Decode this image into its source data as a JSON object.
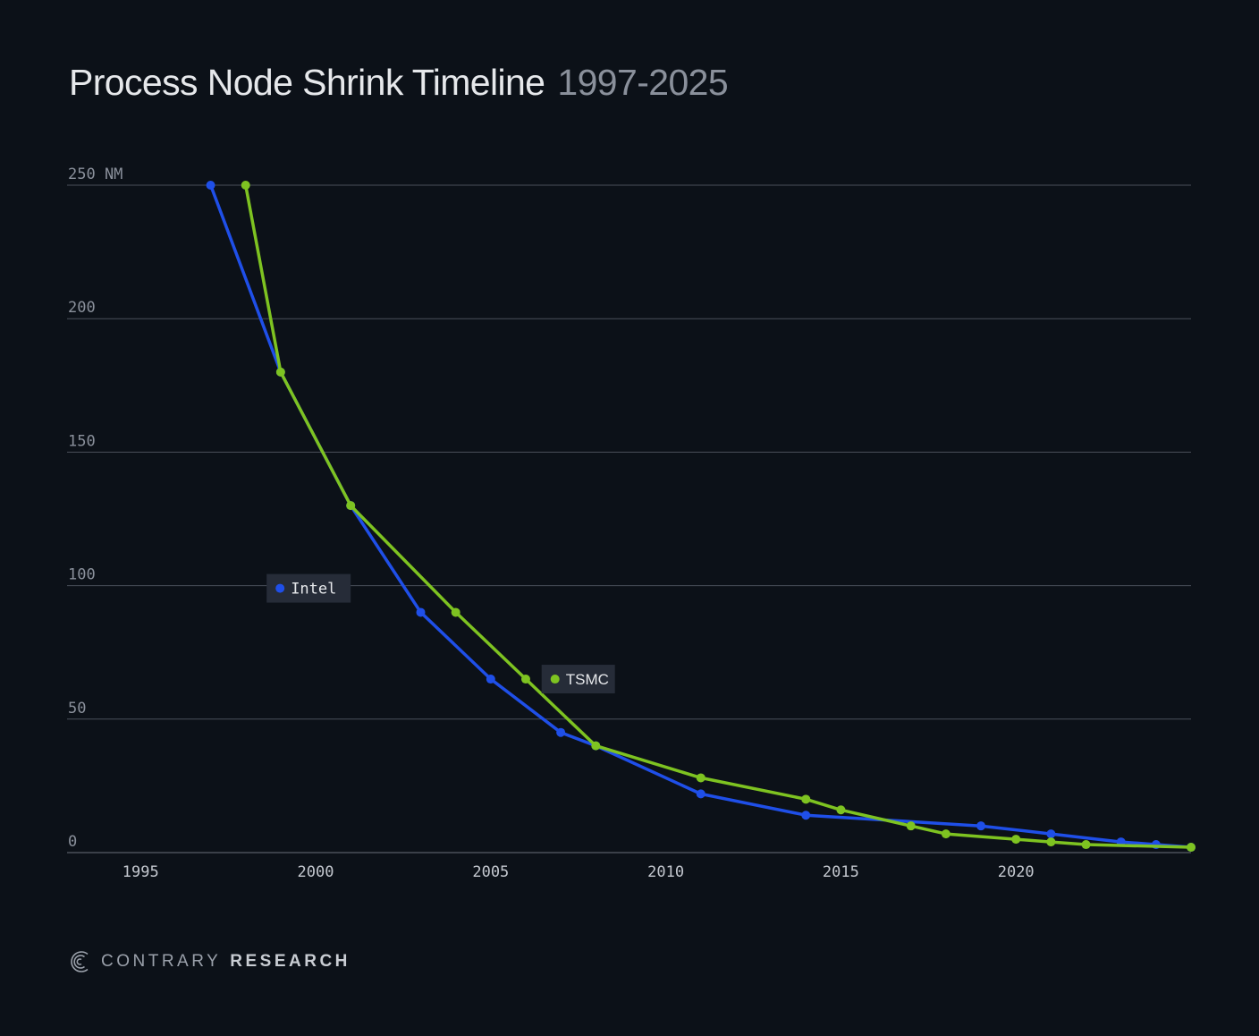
{
  "header": {
    "title": "Process Node Shrink Timeline",
    "subtitle": "1997-2025"
  },
  "footer": {
    "brand_light": "CONTRARY",
    "brand_bold": "RESEARCH",
    "logo_icon": "contrary-logo-icon"
  },
  "colors": {
    "background": "#0c1118",
    "intel": "#1f4fe8",
    "tsmc": "#7ec321",
    "grid": "#4a505a",
    "tick_text": "#8a909b",
    "legend_bg": "#262c38"
  },
  "chart_data": {
    "type": "line",
    "title": "Process Node Shrink Timeline",
    "subtitle": "1997-2025",
    "xlabel": "",
    "ylabel": "",
    "y_unit": "NM",
    "xlim": [
      1992.9,
      2025
    ],
    "ylim": [
      0,
      250
    ],
    "x_ticks": [
      1995,
      2000,
      2005,
      2010,
      2015,
      2020
    ],
    "y_ticks": [
      0,
      50,
      100,
      150,
      200,
      250
    ],
    "grid": true,
    "legend": "inline labels",
    "series": [
      {
        "name": "Intel",
        "color": "#1f4fe8",
        "points": [
          [
            1997,
            250
          ],
          [
            1999,
            180
          ],
          [
            2001,
            130
          ],
          [
            2003,
            90
          ],
          [
            2005,
            65
          ],
          [
            2007,
            45
          ],
          [
            2008,
            40
          ],
          [
            2011,
            22
          ],
          [
            2014,
            14
          ],
          [
            2019,
            10
          ],
          [
            2021,
            7
          ],
          [
            2023,
            4
          ],
          [
            2024,
            3
          ],
          [
            2025,
            2
          ]
        ]
      },
      {
        "name": "TSMC",
        "color": "#7ec321",
        "points": [
          [
            1998,
            250
          ],
          [
            1999,
            180
          ],
          [
            2001,
            130
          ],
          [
            2004,
            90
          ],
          [
            2006,
            65
          ],
          [
            2008,
            40
          ],
          [
            2011,
            28
          ],
          [
            2014,
            20
          ],
          [
            2015,
            16
          ],
          [
            2017,
            10
          ],
          [
            2018,
            7
          ],
          [
            2020,
            5
          ],
          [
            2021,
            4
          ],
          [
            2022,
            3
          ],
          [
            2025,
            2
          ]
        ]
      }
    ]
  }
}
